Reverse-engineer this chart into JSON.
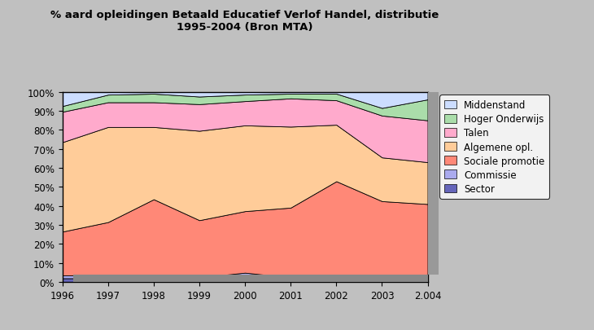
{
  "title_line1": "% aard opleidingen Betaald Educatief Verlof Handel, distributie",
  "title_line2": "1995-2004 (Bron MTA)",
  "years": [
    1996,
    1997,
    1998,
    1999,
    2000,
    2001,
    2002,
    2003,
    2004
  ],
  "xtick_labels": [
    "1996",
    "1997",
    "1998",
    "1999",
    "2000",
    "2001",
    "2002",
    "2003",
    "2.004"
  ],
  "series": {
    "Sector": [
      2.0,
      2.0,
      1.0,
      1.0,
      2.0,
      1.0,
      1.0,
      1.0,
      2.0
    ],
    "Commissie": [
      1.5,
      1.5,
      1.5,
      1.5,
      3.0,
      1.5,
      1.5,
      1.5,
      2.0
    ],
    "Sociale promotie": [
      23.0,
      28.0,
      41.0,
      30.0,
      33.0,
      37.0,
      51.0,
      40.0,
      37.0
    ],
    "Algemene opl.": [
      47.0,
      50.0,
      38.0,
      47.0,
      46.0,
      43.0,
      30.0,
      23.0,
      22.0
    ],
    "Talen": [
      16.0,
      13.0,
      13.0,
      14.0,
      13.0,
      15.0,
      13.0,
      22.0,
      22.0
    ],
    "Hoger Onderwijs": [
      3.0,
      4.0,
      4.5,
      4.0,
      3.5,
      2.5,
      3.5,
      4.0,
      11.0
    ],
    "Middenstand": [
      7.5,
      1.5,
      1.0,
      2.5,
      1.5,
      1.0,
      1.0,
      8.5,
      4.0
    ]
  },
  "colors": {
    "Sector": "#6666bb",
    "Commissie": "#aaaaee",
    "Sociale promotie": "#ff8877",
    "Algemene opl.": "#ffcc99",
    "Talen": "#ffaacc",
    "Hoger Onderwijs": "#aaddaa",
    "Middenstand": "#ccddff"
  },
  "background_color": "#c0c0c0",
  "plot_bg_color": "#ffffff",
  "title_fontsize": 9.5,
  "legend_fontsize": 8.5,
  "ylabel_vals": [
    "0%",
    "10%",
    "20%",
    "30%",
    "40%",
    "50%",
    "60%",
    "70%",
    "80%",
    "90%",
    "100%"
  ]
}
